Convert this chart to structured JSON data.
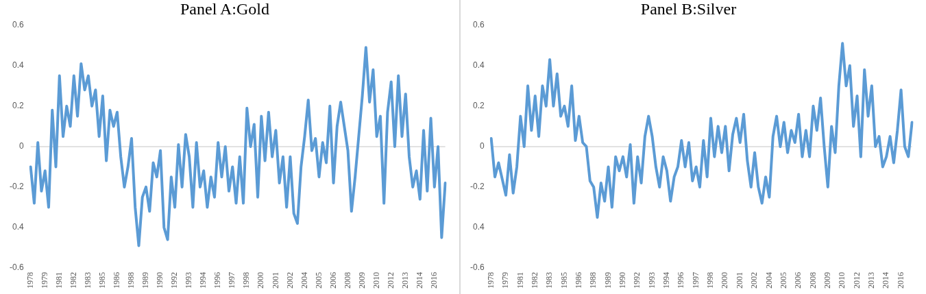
{
  "chart_data": [
    {
      "type": "line",
      "title": "Panel A:Gold",
      "categories": [
        "1978",
        null,
        null,
        null,
        "1979",
        null,
        null,
        null,
        "1981",
        null,
        null,
        null,
        "1982",
        null,
        null,
        null,
        "1983",
        null,
        null,
        null,
        "1985",
        null,
        null,
        null,
        "1986",
        null,
        null,
        null,
        "1988",
        null,
        null,
        null,
        "1989",
        null,
        null,
        null,
        "1990",
        null,
        null,
        null,
        "1992",
        null,
        null,
        null,
        "1993",
        null,
        null,
        null,
        "1994",
        null,
        null,
        null,
        "1996",
        null,
        null,
        null,
        "1997",
        null,
        null,
        null,
        "1998",
        null,
        null,
        null,
        "2000",
        null,
        null,
        null,
        "2001",
        null,
        null,
        null,
        "2002",
        null,
        null,
        null,
        "2004",
        null,
        null,
        null,
        "2005",
        null,
        null,
        null,
        "2006",
        null,
        null,
        null,
        "2008",
        null,
        null,
        null,
        "2009",
        null,
        null,
        null,
        "2010",
        null,
        null,
        null,
        "2012",
        null,
        null,
        null,
        "2013",
        null,
        null,
        null,
        "2014",
        null,
        null,
        null,
        "2016",
        null,
        null,
        null
      ],
      "series": [
        {
          "color": "#5b9bd5",
          "values": [
            -0.1,
            -0.28,
            0.02,
            -0.22,
            -0.12,
            -0.3,
            0.18,
            -0.1,
            0.35,
            0.05,
            0.2,
            0.1,
            0.35,
            0.15,
            0.41,
            0.28,
            0.35,
            0.2,
            0.28,
            0.05,
            0.25,
            -0.07,
            0.18,
            0.1,
            0.17,
            -0.05,
            -0.2,
            -0.1,
            0.04,
            -0.3,
            -0.49,
            -0.25,
            -0.2,
            -0.32,
            -0.08,
            -0.15,
            -0.02,
            -0.4,
            -0.46,
            -0.15,
            -0.3,
            0.01,
            -0.2,
            0.06,
            -0.05,
            -0.3,
            0.02,
            -0.2,
            -0.12,
            -0.3,
            -0.15,
            -0.25,
            0.02,
            -0.15,
            0.0,
            -0.22,
            -0.1,
            -0.28,
            -0.05,
            -0.28,
            0.19,
            0.0,
            0.11,
            -0.25,
            0.15,
            -0.07,
            0.17,
            -0.05,
            0.08,
            -0.18,
            -0.05,
            -0.3,
            -0.05,
            -0.33,
            -0.38,
            -0.1,
            0.05,
            0.23,
            -0.02,
            0.04,
            -0.15,
            0.02,
            -0.08,
            0.2,
            -0.18,
            0.1,
            0.22,
            0.1,
            -0.02,
            -0.32,
            -0.15,
            0.05,
            0.25,
            0.49,
            0.22,
            0.38,
            0.05,
            0.15,
            -0.28,
            0.17,
            0.32,
            0.0,
            0.35,
            0.05,
            0.26,
            -0.05,
            -0.2,
            -0.12,
            -0.26,
            0.08,
            -0.22,
            0.14,
            -0.2,
            0.0,
            -0.45,
            -0.18
          ]
        }
      ],
      "ylim": [
        -0.6,
        0.6
      ],
      "yticks": [
        -0.6,
        {
          "value": -0.4,
          "label": "0.4"
        },
        -0.2,
        0,
        0.2,
        0.4,
        0.6
      ],
      "ref_lines": [
        {
          "axis": "y",
          "value": 0,
          "color": "#d9d9d9"
        }
      ],
      "grid": false,
      "legend": false,
      "marker": "none",
      "line_style": "solid"
    },
    {
      "type": "line",
      "title": "Panel B:Silver",
      "categories": [
        "1978",
        null,
        null,
        null,
        "1979",
        null,
        null,
        null,
        "1981",
        null,
        null,
        null,
        "1982",
        null,
        null,
        null,
        "1983",
        null,
        null,
        null,
        "1985",
        null,
        null,
        null,
        "1986",
        null,
        null,
        null,
        "1988",
        null,
        null,
        null,
        "1989",
        null,
        null,
        null,
        "1990",
        null,
        null,
        null,
        "1992",
        null,
        null,
        null,
        "1993",
        null,
        null,
        null,
        "1994",
        null,
        null,
        null,
        "1996",
        null,
        null,
        null,
        "1997",
        null,
        null,
        null,
        "1998",
        null,
        null,
        null,
        "2000",
        null,
        null,
        null,
        "2001",
        null,
        null,
        null,
        "2002",
        null,
        null,
        null,
        "2004",
        null,
        null,
        null,
        "2005",
        null,
        null,
        null,
        "2006",
        null,
        null,
        null,
        "2008",
        null,
        null,
        null,
        "2009",
        null,
        null,
        null,
        "2010",
        null,
        null,
        null,
        "2012",
        null,
        null,
        null,
        "2013",
        null,
        null,
        null,
        "2014",
        null,
        null,
        null,
        "2016",
        null,
        null,
        null
      ],
      "series": [
        {
          "color": "#5b9bd5",
          "values": [
            0.04,
            -0.15,
            -0.08,
            -0.16,
            -0.24,
            -0.04,
            -0.23,
            -0.1,
            0.15,
            0.0,
            0.3,
            0.08,
            0.25,
            0.05,
            0.3,
            0.2,
            0.43,
            0.2,
            0.36,
            0.15,
            0.2,
            0.1,
            0.3,
            0.03,
            0.15,
            0.02,
            0.0,
            -0.17,
            -0.2,
            -0.35,
            -0.18,
            -0.27,
            -0.1,
            -0.3,
            -0.05,
            -0.12,
            -0.05,
            -0.15,
            0.01,
            -0.28,
            -0.05,
            -0.18,
            0.05,
            0.15,
            0.05,
            -0.1,
            -0.2,
            -0.05,
            -0.12,
            -0.27,
            -0.15,
            -0.1,
            0.03,
            -0.1,
            0.02,
            -0.17,
            -0.1,
            -0.2,
            0.03,
            -0.15,
            0.14,
            -0.05,
            0.1,
            -0.03,
            0.1,
            -0.12,
            0.06,
            0.14,
            0.02,
            0.16,
            -0.07,
            -0.2,
            -0.03,
            -0.2,
            -0.28,
            -0.15,
            -0.25,
            0.05,
            0.15,
            0.0,
            0.12,
            -0.03,
            0.08,
            0.02,
            0.16,
            -0.05,
            0.08,
            -0.05,
            0.2,
            0.08,
            0.24,
            0.0,
            -0.2,
            0.1,
            -0.03,
            0.3,
            0.51,
            0.3,
            0.4,
            0.1,
            0.25,
            -0.05,
            0.38,
            0.15,
            0.3,
            0.0,
            0.05,
            -0.1,
            -0.05,
            0.05,
            -0.08,
            0.08,
            0.28,
            0.0,
            -0.05,
            0.12
          ]
        }
      ],
      "ylim": [
        -0.6,
        0.6
      ],
      "yticks": [
        -0.6,
        {
          "value": -0.4,
          "label": "0.4"
        },
        -0.2,
        0,
        0.2,
        0.4,
        0.6
      ],
      "ref_lines": [
        {
          "axis": "y",
          "value": 0,
          "color": "#d9d9d9"
        }
      ],
      "grid": false,
      "legend": false,
      "marker": "none",
      "line_style": "solid"
    }
  ]
}
